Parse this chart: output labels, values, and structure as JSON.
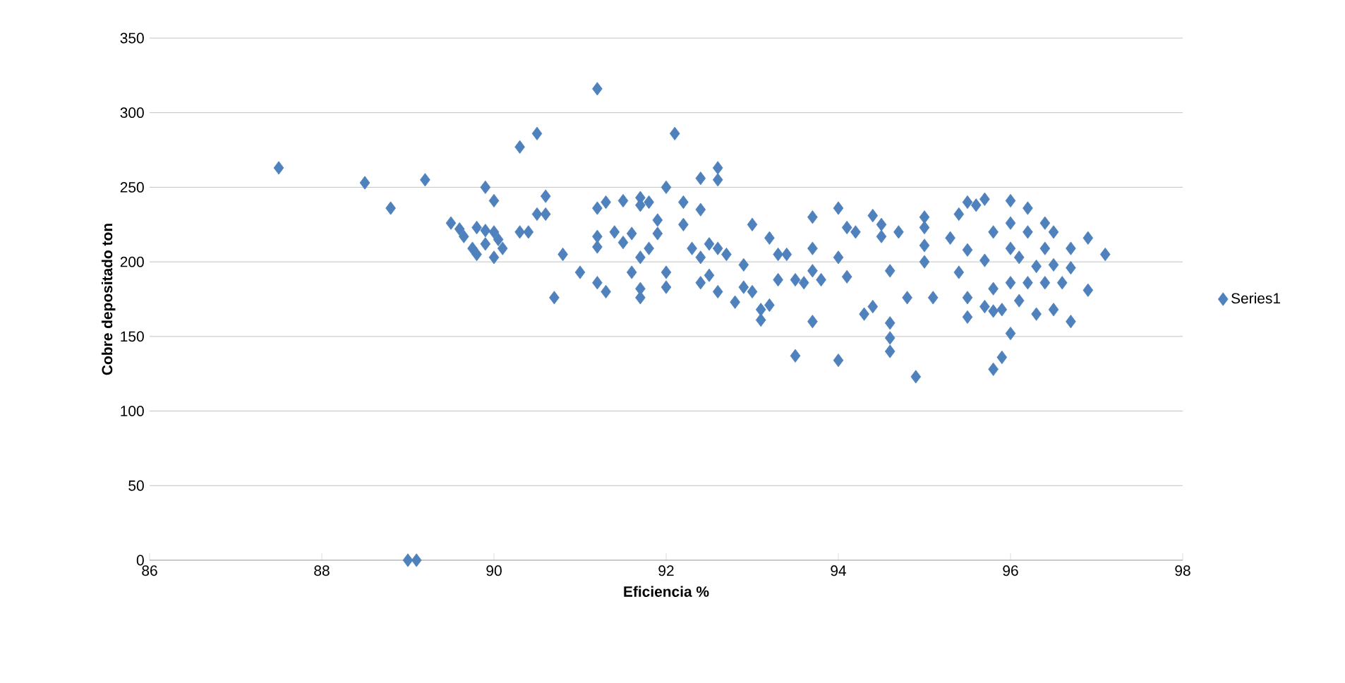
{
  "chart_data": {
    "type": "scatter",
    "xlabel": "Eficiencia %",
    "ylabel": "Cobre depositado ton",
    "xlim": [
      86,
      98
    ],
    "ylim": [
      0,
      350
    ],
    "xticks": [
      86,
      88,
      90,
      92,
      94,
      96,
      98
    ],
    "yticks": [
      0,
      50,
      100,
      150,
      200,
      250,
      300,
      350
    ],
    "grid": "y",
    "legend": "right",
    "marker": "diamond",
    "series": [
      {
        "name": "Series1",
        "color": "#4f81bd",
        "x": [
          87.5,
          88.5,
          88.8,
          89.2,
          89.0,
          89.1,
          89.5,
          89.6,
          89.65,
          89.75,
          89.8,
          89.8,
          89.9,
          89.9,
          89.9,
          90.0,
          90.0,
          90.0,
          90.05,
          90.1,
          90.3,
          90.3,
          90.4,
          90.5,
          90.5,
          90.6,
          90.6,
          90.7,
          90.8,
          91.0,
          91.2,
          91.2,
          91.2,
          91.2,
          91.2,
          91.3,
          91.3,
          91.4,
          91.5,
          91.5,
          91.6,
          91.6,
          91.7,
          91.7,
          91.7,
          91.7,
          91.7,
          91.8,
          91.8,
          91.9,
          91.9,
          92.0,
          92.0,
          92.0,
          92.1,
          92.2,
          92.2,
          92.3,
          92.4,
          92.4,
          92.4,
          92.4,
          92.5,
          92.5,
          92.6,
          92.6,
          92.6,
          92.6,
          92.7,
          92.8,
          92.9,
          92.9,
          93.0,
          93.0,
          93.1,
          93.1,
          93.2,
          93.2,
          93.3,
          93.3,
          93.4,
          93.5,
          93.5,
          93.6,
          93.7,
          93.7,
          93.7,
          93.7,
          93.8,
          94.0,
          94.0,
          94.0,
          94.1,
          94.1,
          94.2,
          94.3,
          94.4,
          94.4,
          94.5,
          94.5,
          94.6,
          94.6,
          94.6,
          94.6,
          94.7,
          94.8,
          94.9,
          95.0,
          95.0,
          95.0,
          95.0,
          95.1,
          95.3,
          95.4,
          95.4,
          95.5,
          95.5,
          95.5,
          95.5,
          95.6,
          95.7,
          95.7,
          95.7,
          95.8,
          95.8,
          95.8,
          95.8,
          95.9,
          95.9,
          96.0,
          96.0,
          96.0,
          96.0,
          96.0,
          96.1,
          96.1,
          96.2,
          96.2,
          96.2,
          96.3,
          96.3,
          96.4,
          96.4,
          96.4,
          96.5,
          96.5,
          96.5,
          96.6,
          96.7,
          96.7,
          96.7,
          96.9,
          96.9,
          97.1
        ],
        "values": [
          263,
          253,
          236,
          255,
          0,
          0,
          226,
          222,
          217,
          209,
          223,
          205,
          212,
          250,
          221,
          241,
          220,
          203,
          215,
          209,
          220,
          277,
          220,
          286,
          232,
          244,
          232,
          176,
          205,
          193,
          316,
          236,
          210,
          217,
          186,
          240,
          180,
          220,
          241,
          213,
          219,
          193,
          243,
          238,
          203,
          182,
          176,
          240,
          209,
          219,
          228,
          250,
          193,
          183,
          286,
          240,
          225,
          209,
          256,
          235,
          203,
          186,
          212,
          191,
          263,
          255,
          209,
          180,
          205,
          173,
          198,
          183,
          225,
          180,
          161,
          168,
          216,
          171,
          205,
          188,
          205,
          137,
          188,
          186,
          230,
          209,
          160,
          194,
          188,
          236,
          203,
          134,
          190,
          223,
          220,
          165,
          231,
          170,
          225,
          217,
          194,
          159,
          149,
          140,
          220,
          176,
          123,
          230,
          223,
          211,
          200,
          176,
          216,
          193,
          232,
          240,
          208,
          176,
          163,
          238,
          242,
          201,
          170,
          220,
          182,
          167,
          128,
          136,
          168,
          241,
          226,
          209,
          152,
          186,
          203,
          174,
          236,
          220,
          186,
          197,
          165,
          226,
          209,
          186,
          220,
          198,
          168,
          186,
          209,
          196,
          160,
          216,
          181,
          205
        ]
      }
    ]
  }
}
